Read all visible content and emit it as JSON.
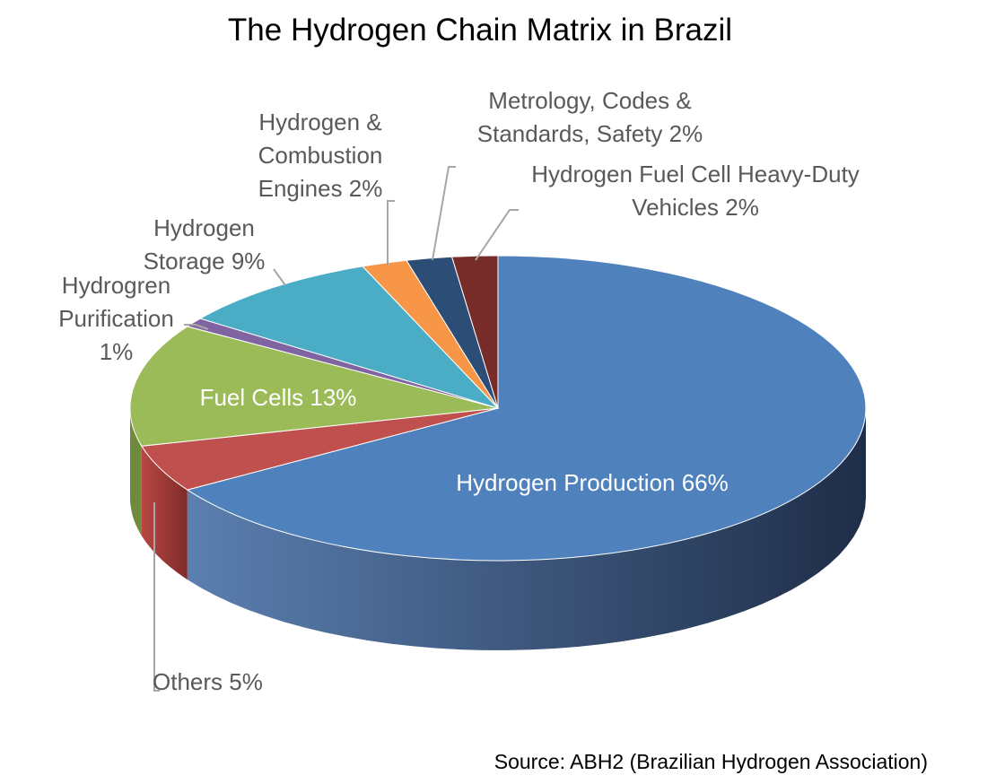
{
  "chart_data": {
    "type": "pie",
    "style": "3d",
    "title": "The Hydrogen Chain Matrix in Brazil",
    "source": "Source: ABH2 (Brazilian Hydrogen Association)",
    "slices": [
      {
        "name": "Hydrogen Production",
        "value": 66,
        "label": "Hydrogen Production 66%",
        "color": "#4F81BD",
        "side_color": "#3A5F8F"
      },
      {
        "name": "Others",
        "value": 5,
        "label": "Others 5%",
        "color": "#C0504D",
        "side_color": "#8E3432"
      },
      {
        "name": "Fuel Cells",
        "value": 13,
        "label": "Fuel Cells 13%",
        "color": "#9BBB59",
        "side_color": "#6F8A3D"
      },
      {
        "name": "Hydrogren Purification",
        "value": 1,
        "label": "Hydrogren Purification 1%",
        "color": "#8064A2",
        "side_color": "#5C4878"
      },
      {
        "name": "Hydrogen Storage",
        "value": 9,
        "label": "Hydrogen Storage 9%",
        "color": "#4BACC6",
        "side_color": "#347F93"
      },
      {
        "name": "Hydrogen & Combustion Engines",
        "value": 2,
        "label": "Hydrogen & Combustion Engines 2%",
        "color": "#F79646",
        "side_color": "#B86C2E"
      },
      {
        "name": "Metrology, Codes & Standards, Safety",
        "value": 2,
        "label": "Metrology, Codes & Standards, Safety 2%",
        "color": "#2C4D75",
        "side_color": "#1E3553"
      },
      {
        "name": "Hydrogen Fuel Cell Heavy-Duty Vehicles",
        "value": 2,
        "label": "Hydrogen Fuel Cell Heavy-Duty Vehicles 2%",
        "color": "#772C2A",
        "side_color": "#521E1D"
      }
    ]
  }
}
